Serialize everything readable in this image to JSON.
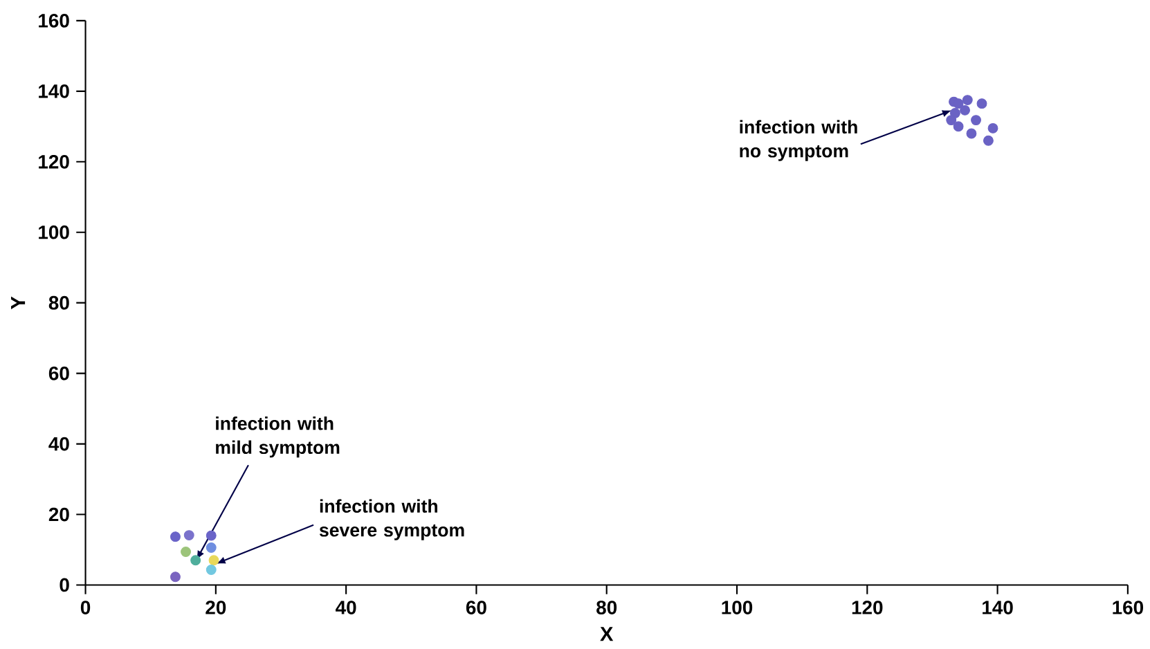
{
  "chart_data": {
    "type": "scatter",
    "xlabel": "X",
    "ylabel": "Y",
    "xlim": [
      0,
      160
    ],
    "ylim": [
      0,
      160
    ],
    "xticks": [
      0,
      20,
      40,
      60,
      80,
      100,
      120,
      140,
      160
    ],
    "yticks": [
      0,
      20,
      40,
      60,
      80,
      100,
      120,
      140,
      160
    ],
    "grid": false,
    "series": [
      {
        "x": [
          13.8,
          15.9,
          19.3,
          15.4,
          16.9,
          19.3,
          19.7,
          19.3,
          13.8
        ],
        "values": [
          13.7,
          14.1,
          14.0,
          9.4,
          7.0,
          10.6,
          7.0,
          4.3,
          2.3
        ],
        "colors": [
          "#6a64c8",
          "#7a72cc",
          "#6a64c8",
          "#9cc47a",
          "#4fae9c",
          "#6f8ee0",
          "#e8d85a",
          "#72c8e0",
          "#7a64c0"
        ]
      },
      {
        "x": [
          133.3,
          134.0,
          135.4,
          133.5,
          135.0,
          137.6,
          134.0,
          136.0,
          139.3,
          138.6,
          132.9,
          136.7
        ],
        "values": [
          137.0,
          136.5,
          137.5,
          133.8,
          134.6,
          136.5,
          130.0,
          128.0,
          129.5,
          126.0,
          131.8,
          131.8
        ],
        "color": "#6a62c4"
      }
    ],
    "annotations": [
      {
        "text": "infection with no symptom",
        "x": 133,
        "y": 134.6
      },
      {
        "text": "infection with mild symptom",
        "x": 17,
        "y": 7
      },
      {
        "text": "infection with severe symptom",
        "x": 20,
        "y": 6
      }
    ]
  }
}
